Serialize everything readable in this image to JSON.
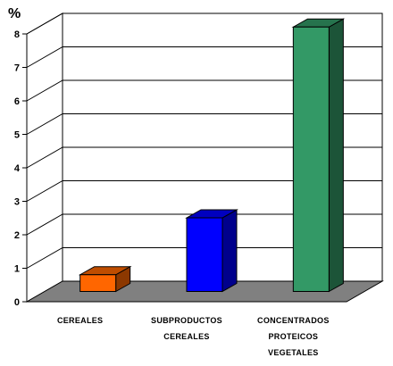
{
  "chart_data": {
    "type": "bar",
    "ylabel": "%",
    "ylim": [
      0,
      8
    ],
    "yticks": [
      "0",
      "1",
      "2",
      "3",
      "4",
      "5",
      "6",
      "7",
      "8"
    ],
    "grid": true,
    "legend": "none",
    "categories": [
      "CEREALES",
      "SUBPRODUCTOS CEREALES",
      "CONCENTRADOS PROTEICOS VEGETALES"
    ],
    "category_lines": [
      [
        "CEREALES"
      ],
      [
        "SUBPRODUCTOS",
        "CEREALES"
      ],
      [
        "CONCENTRADOS",
        "PROTEICOS",
        "VEGETALES"
      ]
    ],
    "values": [
      0.5,
      2.2,
      7.9
    ],
    "colors": [
      "#FF6600",
      "#0000FF",
      "#339966"
    ]
  }
}
